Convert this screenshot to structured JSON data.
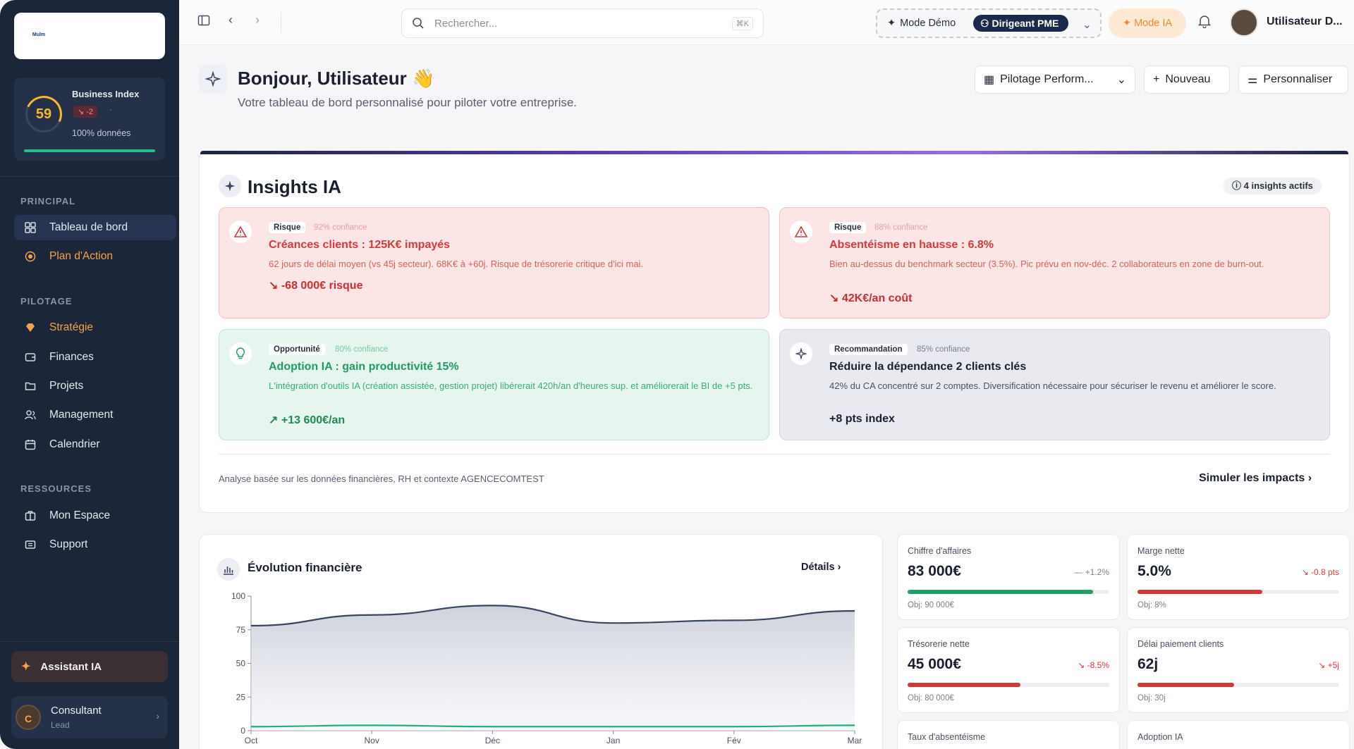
{
  "sidebar": {
    "logo_text": "Mulm",
    "business_index": {
      "title": "Business Index",
      "score": "59",
      "delta": "↘ -2",
      "separator": "·",
      "data_label": "100% données",
      "data_fraction": 1.0
    },
    "sections": [
      {
        "title": "PRINCIPAL",
        "items": [
          {
            "label": "Tableau de bord"
          },
          {
            "label": "Plan d'Action"
          }
        ]
      },
      {
        "title": "PILOTAGE",
        "items": [
          {
            "label": "Stratégie"
          },
          {
            "label": "Finances"
          },
          {
            "label": "Projets"
          },
          {
            "label": "Management"
          },
          {
            "label": "Calendrier"
          }
        ]
      },
      {
        "title": "RESSOURCES",
        "items": [
          {
            "label": "Mon Espace"
          },
          {
            "label": "Support"
          }
        ]
      }
    ],
    "assistant_label": "Assistant IA",
    "user": {
      "initial": "C",
      "name": "Consultant",
      "role": "Lead"
    }
  },
  "topbar": {
    "search_placeholder": "Rechercher...",
    "search_shortcut": "⌘K",
    "demo_label": "Mode Démo",
    "role_pill": "Dirigeant PME",
    "mode_ia": "Mode IA",
    "user_name": "Utilisateur D..."
  },
  "header": {
    "greeting": "Bonjour, Utilisateur 👋",
    "subtitle": "Votre tableau de bord personnalisé pour piloter votre entreprise.",
    "view_select": "Pilotage Perform...",
    "new_button": "Nouveau",
    "customize_button": "Personnaliser"
  },
  "insights": {
    "title": "Insights IA",
    "badge": "4 insights actifs",
    "cards": [
      {
        "type": "risk",
        "tag": "Risque",
        "confidence": "92% confiance",
        "title": "Créances clients : 125K€ impayés",
        "desc": "62 jours de délai moyen (vs 45j secteur). 68K€ à +60j. Risque de trésorerie critique d'ici mai.",
        "value": "↘ -68 000€ risque"
      },
      {
        "type": "risk",
        "tag": "Risque",
        "confidence": "88% confiance",
        "title": "Absentéisme en hausse : 6.8%",
        "desc": "Bien au-dessus du benchmark secteur (3.5%). Pic prévu en nov-déc. 2 collaborateurs en zone de burn-out.",
        "value": "↘ 42K€/an coût"
      },
      {
        "type": "opp",
        "tag": "Opportunité",
        "confidence": "80% confiance",
        "title": "Adoption IA : gain productivité 15%",
        "desc": "L'intégration d'outils IA (création assistée, gestion projet) libérerait 420h/an d'heures sup. et améliorerait le BI de +5 pts.",
        "value": "↗ +13 600€/an"
      },
      {
        "type": "rec",
        "tag": "Recommandation",
        "confidence": "85% confiance",
        "title": "Réduire la dépendance 2 clients clés",
        "desc": "42% du CA concentré sur 2 comptes. Diversification nécessaire pour sécuriser le revenu et améliorer le score.",
        "value": "+8 pts index"
      }
    ],
    "footer": "Analyse basée sur les données financières, RH et contexte AGENCECOMTEST",
    "simulate": "Simuler les impacts"
  },
  "finance": {
    "title": "Évolution financière",
    "details": "Détails"
  },
  "chart_data": {
    "type": "area",
    "categories": [
      "Oct",
      "Nov",
      "Déc",
      "Jan",
      "Fév",
      "Mar"
    ],
    "series": [
      {
        "values": [
          78,
          86,
          93,
          80,
          82,
          89
        ],
        "color": "#3a4660"
      },
      {
        "values": [
          3,
          4,
          3,
          3,
          3,
          4
        ],
        "color": "#22b07a"
      }
    ],
    "yticks": [
      "0",
      "25",
      "50",
      "75",
      "100"
    ],
    "ylim": [
      0,
      100
    ],
    "grid": false
  },
  "kpis": [
    {
      "label": "Chiffre d'affaires",
      "value": "83 000€",
      "delta": "— +1.2%",
      "delta_color": "#7a8090",
      "progress": 0.92,
      "bar_color": "#22a06a",
      "objective": "Obj: 90 000€"
    },
    {
      "label": "Marge nette",
      "value": "5.0%",
      "delta": "↘ -0.8 pts",
      "delta_color": "#d43a3a",
      "progress": 0.62,
      "bar_color": "#d63636",
      "objective": "Obj: 8%"
    },
    {
      "label": "Trésorerie nette",
      "value": "45 000€",
      "delta": "↘ -8.5%",
      "delta_color": "#d43a3a",
      "progress": 0.56,
      "bar_color": "#d63636",
      "objective": "Obj: 80 000€"
    },
    {
      "label": "Délai paiement clients",
      "value": "62j",
      "delta": "↘ +5j",
      "delta_color": "#d43a3a",
      "progress": 0.48,
      "bar_color": "#d63636",
      "objective": "Obj: 30j"
    },
    {
      "label": "Taux d'absentéisme"
    },
    {
      "label": "Adoption IA"
    }
  ]
}
